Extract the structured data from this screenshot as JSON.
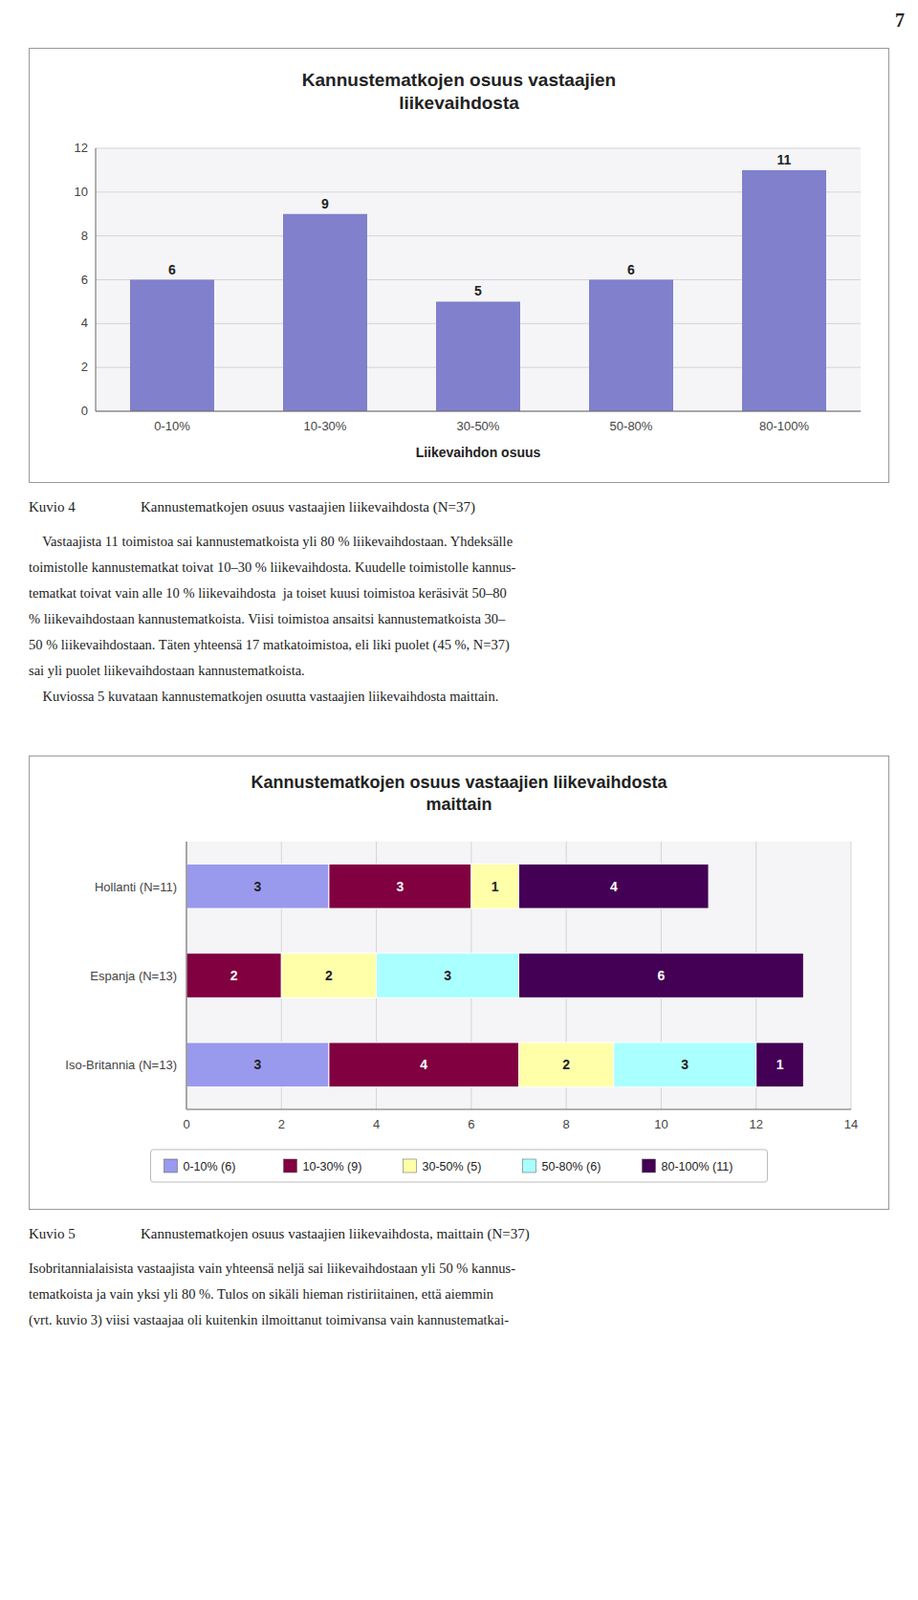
{
  "page_number": "7",
  "chart_data": [
    {
      "type": "bar",
      "title": "Kannustematkojen osuus vastaajien\nliikevaihdosta",
      "categories": [
        "0-10%",
        "10-30%",
        "30-50%",
        "50-80%",
        "80-100%"
      ],
      "values": [
        6,
        9,
        5,
        6,
        11
      ],
      "color": "#8080cc",
      "xlabel": "Liikevaihdon osuus",
      "ylim": [
        0,
        12
      ],
      "yticks": [
        0,
        2,
        4,
        6,
        8,
        10,
        12
      ],
      "grid": true,
      "data_labels": true
    },
    {
      "type": "bar",
      "orientation": "horizontal",
      "stacked": true,
      "title": "Kannustematkojen osuus vastaajien liikevaihdosta\nmaittain",
      "categories": [
        "Hollanti (N=11)",
        "Espanja (N=13)",
        "Iso-Britannia (N=13)"
      ],
      "series": [
        {
          "name": "0-10% (6)",
          "color": "#9999ee",
          "values": [
            3,
            0,
            3
          ]
        },
        {
          "name": "10-30% (9)",
          "color": "#800040",
          "values": [
            3,
            2,
            4
          ]
        },
        {
          "name": "30-50% (5)",
          "color": "#ffffaa",
          "values": [
            1,
            2,
            2
          ]
        },
        {
          "name": "50-80% (6)",
          "color": "#aaffff",
          "values": [
            0,
            3,
            3
          ]
        },
        {
          "name": "80-100% (11)",
          "color": "#440055",
          "values": [
            4,
            6,
            1
          ]
        }
      ],
      "xlim": [
        0,
        14
      ],
      "xticks": [
        0,
        2,
        4,
        6,
        8,
        10,
        12,
        14
      ],
      "grid": true,
      "legend": "bottom",
      "data_labels": true
    }
  ],
  "text1": {
    "caption_label": "Kuvio 4",
    "caption_text": "Kannustematkojen osuus vastaajien liikevaihdosta (N=37)",
    "lines": [
      "    Vastaajista 11 toimistoa sai kannustematkoista yli 80 % liikevaihdostaan. Yhdeksälle",
      "toimistolle kannustematkat toivat 10–30 % liikevaihdosta. Kuudelle toimistolle kannus-",
      "tematkat toivat vain alle 10 % liikevaihdosta  ja toiset kuusi toimistoa keräsivät 50–80",
      "% liikevaihdostaan kannustematkoista. Viisi toimistoa ansaitsi kannustematkoista 30–",
      "50 % liikevaihdostaan. Täten yhteensä 17 matkatoimistoa, eli liki puolet (45 %, N=37)",
      "sai yli puolet liikevaihdostaan kannustematkoista.",
      "    Kuviossa 5 kuvataan kannustematkojen osuutta vastaajien liikevaihdosta maittain."
    ]
  },
  "text2": {
    "caption_label": "Kuvio 5",
    "caption_text": "Kannustematkojen osuus vastaajien liikevaihdosta, maittain (N=37)",
    "lines": [
      "Isobritannialaisista vastaajista vain yhteensä neljä sai liikevaihdostaan yli 50 % kannus-",
      "tematkoista ja vain yksi yli 80 %. Tulos on sikäli hieman ristiriitainen, että aiemmin",
      "(vrt. kuvio 3) viisi vastaajaa oli kuitenkin ilmoittanut toimivansa vain kannustematkai-"
    ]
  }
}
